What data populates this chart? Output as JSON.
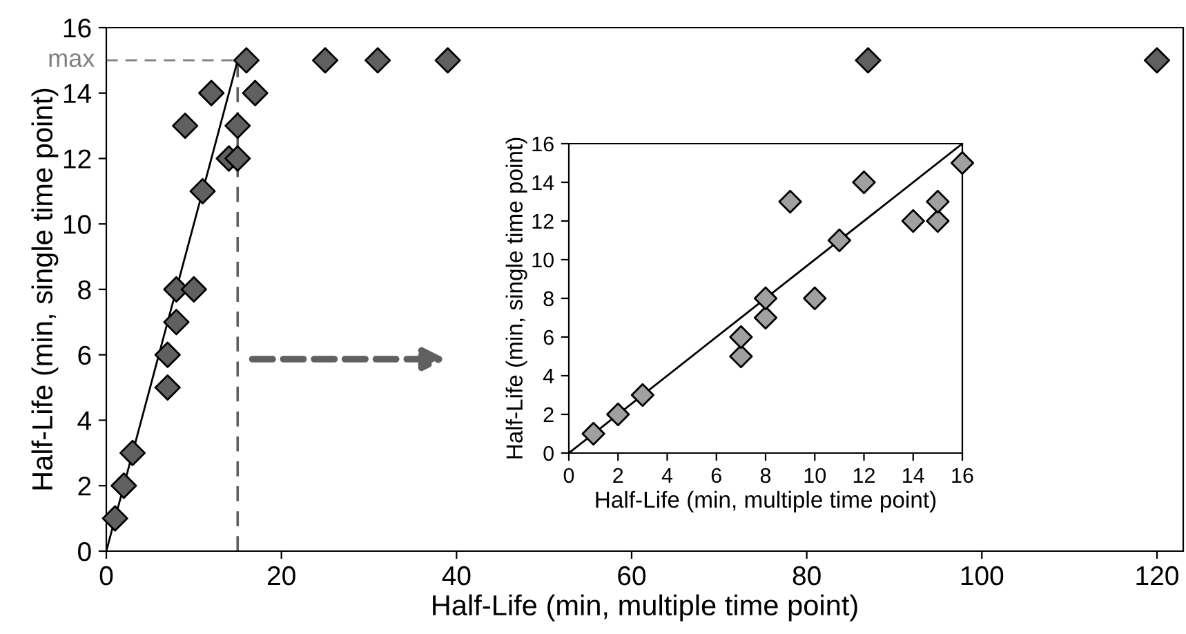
{
  "chart_data": [
    {
      "type": "scatter",
      "xlabel": "Half-Life (min, multiple time point)",
      "ylabel": "Half-Life (min, single time point)",
      "xlim": [
        0,
        123
      ],
      "ylim": [
        0,
        16
      ],
      "xticks": [
        0,
        20,
        40,
        60,
        80,
        100,
        120
      ],
      "yticks": [
        0,
        2,
        4,
        6,
        8,
        10,
        12,
        14,
        16
      ],
      "grid": false,
      "series": [
        {
          "marker": "diamond",
          "color": "#606060",
          "x": [
            1,
            2,
            3,
            7,
            7,
            8,
            8,
            10,
            11,
            9,
            12,
            14,
            15,
            15,
            16,
            17,
            25,
            31,
            39,
            87,
            120
          ],
          "values": [
            1,
            2,
            3,
            5,
            6,
            7,
            8,
            8,
            11,
            13,
            14,
            12,
            12,
            13,
            15,
            14,
            15,
            15,
            15,
            15,
            15
          ]
        },
        {
          "type": "line",
          "color": "#000000",
          "x": [
            0,
            15
          ],
          "values": [
            0,
            15
          ]
        }
      ],
      "ref_lines": [
        {
          "axis": "y",
          "value": 15,
          "label": "max",
          "color": "#808080",
          "line_style": "dashed"
        },
        {
          "axis": "x",
          "value": 15,
          "color": "#606060",
          "line_style": "dashed"
        }
      ]
    },
    {
      "type": "scatter",
      "xlabel": "Half-Life (min, multiple time point)",
      "ylabel": "Half-Life (min, single time point)",
      "xlim": [
        0,
        16
      ],
      "ylim": [
        0,
        16
      ],
      "xticks": [
        0,
        2,
        4,
        6,
        8,
        10,
        12,
        14,
        16
      ],
      "yticks": [
        0,
        2,
        4,
        6,
        8,
        10,
        12,
        14,
        16
      ],
      "grid": false,
      "series": [
        {
          "marker": "diamond",
          "color": "#a0a0a0",
          "x": [
            1,
            2,
            3,
            7,
            7,
            8,
            8,
            10,
            11,
            9,
            12,
            14,
            15,
            15,
            16
          ],
          "values": [
            1,
            2,
            3,
            5,
            6,
            7,
            8,
            8,
            11,
            13,
            14,
            12,
            12,
            13,
            15
          ]
        },
        {
          "type": "line",
          "color": "#000000",
          "x": [
            0,
            16
          ],
          "values": [
            0,
            16
          ]
        }
      ]
    }
  ]
}
